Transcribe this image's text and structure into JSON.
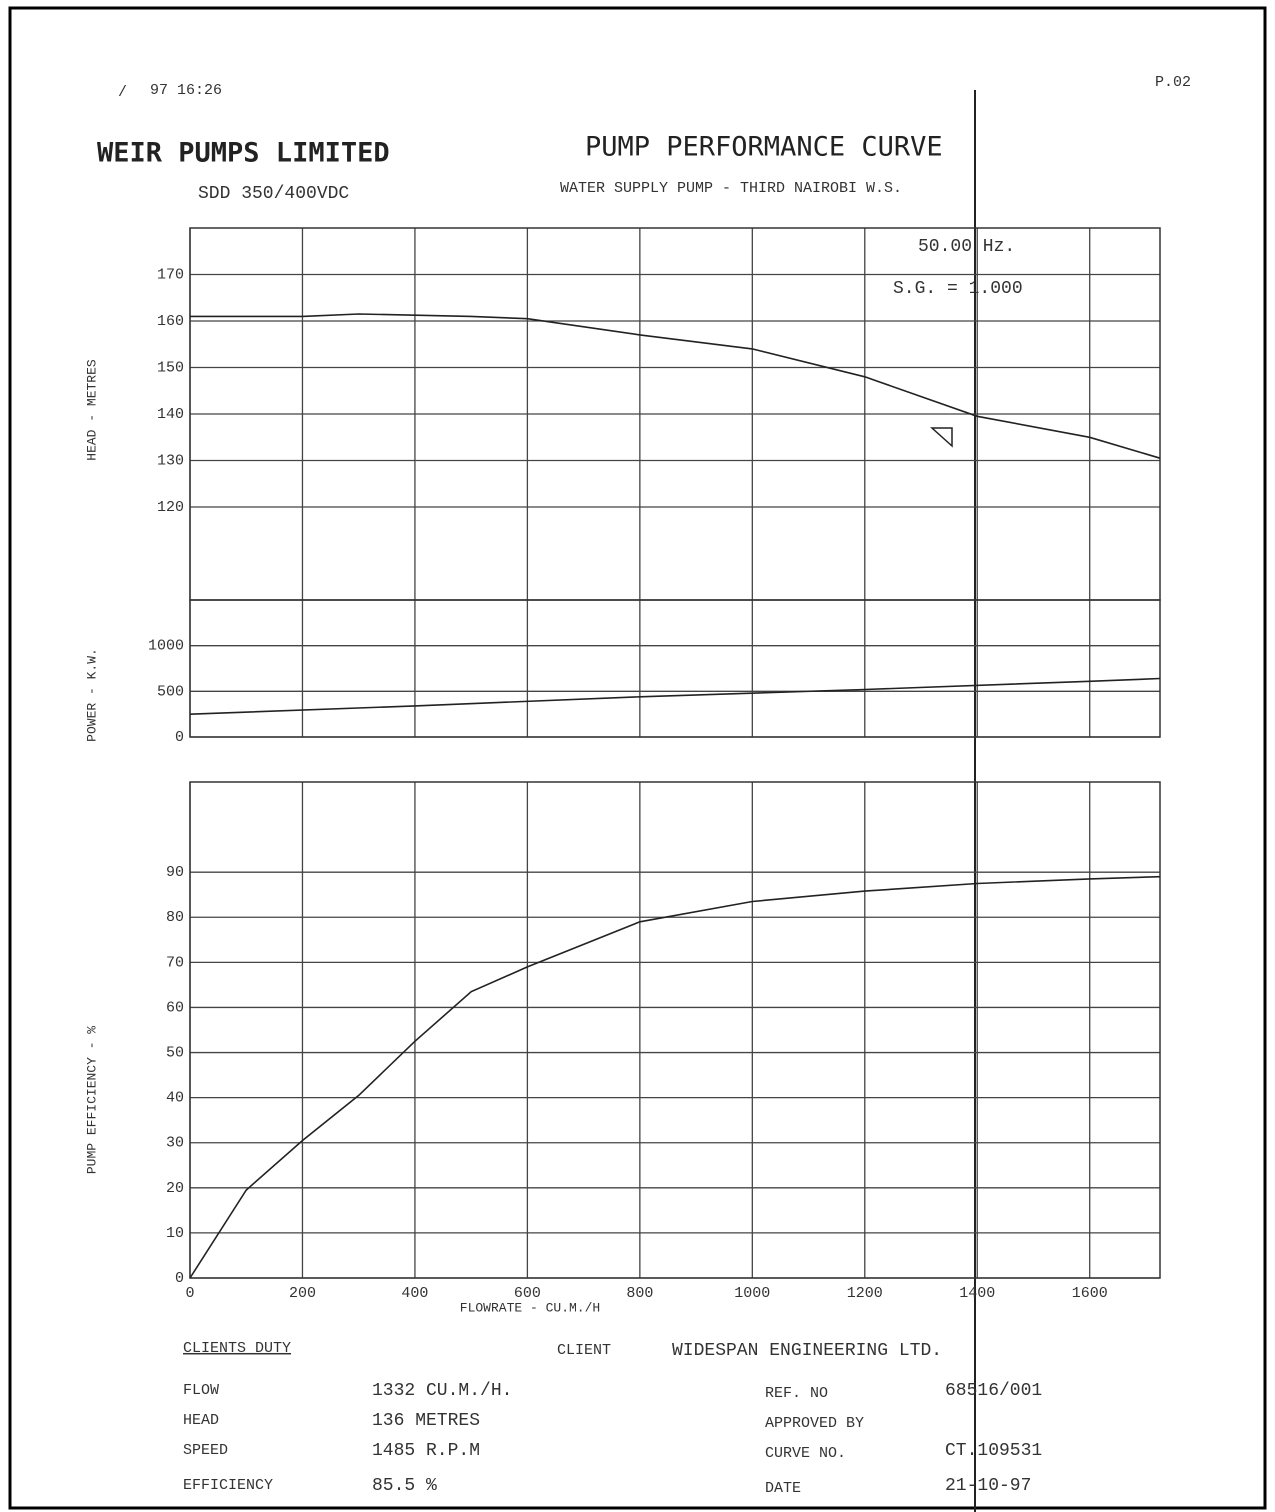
{
  "header": {
    "timestamp": "97 16:26",
    "page": "P.02",
    "company": "WEIR PUMPS LIMITED",
    "title": "PUMP PERFORMANCE CURVE",
    "pump_model": "SDD 350/400VDC",
    "subtitle": "WATER SUPPLY PUMP - THIRD NAIROBI W.S."
  },
  "chart_data": [
    {
      "type": "line",
      "ylabel": "HEAD - METRES",
      "annotations": [
        "50.00 Hz.",
        "S.G. = 1.000"
      ],
      "xlim": [
        0,
        1725
      ],
      "xticks": [
        0,
        200,
        400,
        600,
        800,
        1000,
        1200,
        1400,
        1600
      ],
      "ylim": [
        100,
        180
      ],
      "yticks": [
        120,
        130,
        140,
        150,
        160,
        170
      ],
      "grid": true,
      "color": "#222222",
      "x": [
        0,
        200,
        300,
        500,
        600,
        800,
        1000,
        1200,
        1400,
        1600,
        1725
      ],
      "values": [
        161,
        161,
        161.5,
        161,
        160.5,
        157,
        154,
        148,
        139.5,
        135,
        130.5
      ]
    },
    {
      "type": "line",
      "ylabel": "POWER - K.W.",
      "xlim": [
        0,
        1725
      ],
      "xticks": [
        0,
        200,
        400,
        600,
        800,
        1000,
        1200,
        1400,
        1600
      ],
      "ylim": [
        0,
        1500
      ],
      "yticks": [
        0,
        500,
        1000
      ],
      "grid": true,
      "color": "#222222",
      "x": [
        0,
        400,
        800,
        1200,
        1600,
        1725
      ],
      "values": [
        250,
        340,
        440,
        520,
        610,
        640
      ]
    },
    {
      "type": "line",
      "ylabel": "PUMP EFFICIENCY - %",
      "xlabel": "FLOWRATE - CU.M./H",
      "xlim": [
        0,
        1725
      ],
      "xticks": [
        0,
        200,
        400,
        600,
        800,
        1000,
        1200,
        1400,
        1600
      ],
      "ylim": [
        0,
        110
      ],
      "yticks": [
        0,
        10,
        20,
        30,
        40,
        50,
        60,
        70,
        80,
        90
      ],
      "grid": true,
      "color": "#222222",
      "x": [
        0,
        100,
        200,
        300,
        400,
        500,
        600,
        800,
        1000,
        1200,
        1400,
        1600,
        1725
      ],
      "values": [
        0,
        19.5,
        30.5,
        40.5,
        52.5,
        63.5,
        69,
        79,
        83.5,
        85.8,
        87.5,
        88.5,
        89
      ]
    }
  ],
  "footer": {
    "duty_title": "CLIENTS DUTY",
    "client_label": "CLIENT",
    "client": "WIDESPAN ENGINEERING LTD.",
    "duty": [
      [
        "FLOW",
        "1332 CU.M./H."
      ],
      [
        "HEAD",
        "136 METRES"
      ],
      [
        "SPEED",
        "1485 R.P.M"
      ],
      [
        "EFFICIENCY",
        "85.5 %"
      ]
    ],
    "info": [
      [
        "REF. NO",
        "68516/001"
      ],
      [
        "APPROVED BY",
        ""
      ],
      [
        "CURVE NO.",
        "CT.109531"
      ],
      [
        "DATE",
        "21-10-97"
      ]
    ]
  }
}
